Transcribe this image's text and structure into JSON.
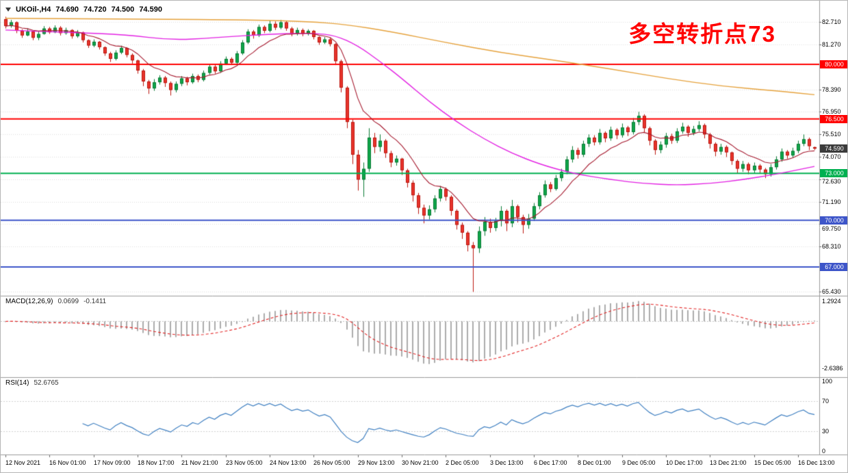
{
  "header": {
    "symbol_timeframe": "UKOil-,H4",
    "open": "74.690",
    "high": "74.720",
    "low": "74.500",
    "close": "74.590"
  },
  "annotation": {
    "text": "多空转折点73",
    "color": "#ff0000"
  },
  "price_axis": {
    "ticks": [
      "82.710",
      "81.270",
      "78.390",
      "76.950",
      "75.510",
      "74.070",
      "72.630",
      "71.190",
      "69.750",
      "68.310",
      "65.430"
    ],
    "current": {
      "label": "74.590",
      "value": 74.59,
      "bg": "#3b3b3b"
    }
  },
  "levels": [
    {
      "label": "80.000",
      "value": 80.0,
      "color": "#ff0000"
    },
    {
      "label": "76.500",
      "value": 76.5,
      "color": "#ff0000"
    },
    {
      "label": "73.000",
      "value": 73.0,
      "color": "#00b050"
    },
    {
      "label": "70.000",
      "value": 70.0,
      "color": "#3d55c9"
    },
    {
      "label": "67.000",
      "value": 67.0,
      "color": "#3d55c9"
    }
  ],
  "indicators": {
    "macd": {
      "label": "MACD(12,26,9)",
      "value_main": "0.0699",
      "value_signal": "-0.1411",
      "axis_max": "1.2924",
      "axis_min": "-2.6386",
      "fast": 12,
      "slow": 26,
      "signal": 9,
      "ylim": [
        -3.05,
        1.36
      ],
      "hist_color": "#ababab",
      "signal_color": "#e32222"
    },
    "rsi": {
      "label": "RSI(14)",
      "value": "52.6765",
      "period": 14,
      "ylim": [
        0,
        100
      ],
      "levels": [
        70,
        30
      ],
      "axis_ticks": [
        "100",
        "70",
        "30",
        "0"
      ],
      "color": "#3e7fc1"
    }
  },
  "chart_data": {
    "type": "candlestick",
    "symbol": "UKOil-",
    "timeframe": "H4",
    "title": "UKOil- H4 with MACD(12,26,9) and RSI(14)",
    "ylim": [
      65.2,
      83.95
    ],
    "ohlc_last": {
      "open": 74.69,
      "high": 74.72,
      "low": 74.5,
      "close": 74.59
    },
    "x_labels": [
      "12 Nov 2021",
      "16 Nov 01:00",
      "17 Nov 09:00",
      "18 Nov 17:00",
      "21 Nov 21:00",
      "23 Nov 05:00",
      "24 Nov 13:00",
      "26 Nov 05:00",
      "29 Nov 13:00",
      "30 Nov 21:00",
      "2 Dec 05:00",
      "3 Dec 13:00",
      "6 Dec 17:00",
      "8 Dec 01:00",
      "9 Dec 05:00",
      "10 Dec 17:00",
      "13 Dec 21:00",
      "15 Dec 05:00",
      "16 Dec 13:00"
    ],
    "style": {
      "up_fill": "#10a54a",
      "up_border": "#067a32",
      "down_fill": "#e8342c",
      "down_border": "#bb150e"
    },
    "ma_fast": {
      "type": "ema",
      "period": 10,
      "color": "#a6192e"
    },
    "ma_mid": {
      "name": "ma-mid",
      "color": "#e321e3",
      "points": [
        [
          0,
          82.2
        ],
        [
          12,
          82.05
        ],
        [
          22,
          81.9
        ],
        [
          30,
          81.55
        ],
        [
          38,
          81.7
        ],
        [
          48,
          81.95
        ],
        [
          56,
          82.0
        ],
        [
          60,
          81.85
        ],
        [
          64,
          81.2
        ],
        [
          68,
          80.2
        ],
        [
          72,
          79.1
        ],
        [
          77,
          77.6
        ],
        [
          82,
          76.3
        ],
        [
          87,
          75.2
        ],
        [
          92,
          74.3
        ],
        [
          97,
          73.6
        ],
        [
          103,
          73.0
        ],
        [
          110,
          72.6
        ],
        [
          116,
          72.35
        ],
        [
          122,
          72.25
        ],
        [
          128,
          72.35
        ],
        [
          134,
          72.6
        ],
        [
          140,
          72.95
        ],
        [
          147,
          73.45
        ]
      ]
    },
    "ma_slow": {
      "name": "ma-slow",
      "color": "#e6a23c",
      "points": [
        [
          0,
          82.95
        ],
        [
          25,
          82.9
        ],
        [
          45,
          82.85
        ],
        [
          55,
          82.75
        ],
        [
          62,
          82.55
        ],
        [
          70,
          82.1
        ],
        [
          80,
          81.4
        ],
        [
          90,
          80.75
        ],
        [
          100,
          80.25
        ],
        [
          110,
          79.7
        ],
        [
          120,
          79.1
        ],
        [
          130,
          78.6
        ],
        [
          140,
          78.3
        ],
        [
          147,
          78.05
        ]
      ]
    },
    "candles": [
      [
        82.9,
        83.05,
        82.3,
        82.45
      ],
      [
        82.45,
        82.85,
        82.35,
        82.7
      ],
      [
        82.7,
        82.75,
        82.0,
        82.15
      ],
      [
        82.15,
        82.25,
        81.7,
        81.85
      ],
      [
        81.85,
        82.3,
        81.8,
        82.1
      ],
      [
        82.1,
        82.15,
        81.55,
        81.7
      ],
      [
        81.7,
        82.1,
        81.55,
        81.95
      ],
      [
        81.95,
        82.45,
        81.9,
        82.3
      ],
      [
        82.3,
        82.4,
        81.95,
        82.05
      ],
      [
        82.05,
        82.5,
        82.0,
        82.35
      ],
      [
        82.35,
        82.45,
        81.85,
        82.0
      ],
      [
        82.0,
        82.35,
        81.9,
        82.2
      ],
      [
        82.2,
        82.25,
        81.65,
        81.8
      ],
      [
        81.8,
        82.2,
        81.7,
        82.05
      ],
      [
        82.05,
        82.1,
        81.4,
        81.55
      ],
      [
        81.55,
        81.6,
        81.05,
        81.2
      ],
      [
        81.2,
        81.6,
        81.1,
        81.45
      ],
      [
        81.45,
        81.5,
        80.95,
        81.1
      ],
      [
        81.1,
        81.15,
        80.55,
        80.7
      ],
      [
        80.7,
        80.8,
        80.15,
        80.35
      ],
      [
        80.35,
        80.9,
        80.25,
        80.75
      ],
      [
        80.75,
        81.2,
        80.65,
        81.05
      ],
      [
        81.05,
        81.1,
        80.45,
        80.6
      ],
      [
        80.6,
        80.7,
        80.05,
        80.25
      ],
      [
        80.25,
        80.3,
        79.4,
        79.6
      ],
      [
        79.6,
        79.7,
        78.6,
        78.9
      ],
      [
        78.9,
        79.0,
        78.1,
        78.45
      ],
      [
        78.45,
        79.05,
        78.3,
        78.85
      ],
      [
        78.85,
        79.3,
        78.7,
        79.15
      ],
      [
        79.15,
        79.25,
        78.55,
        78.8
      ],
      [
        78.8,
        78.9,
        78.0,
        78.35
      ],
      [
        78.35,
        78.9,
        78.2,
        78.75
      ],
      [
        78.75,
        79.25,
        78.6,
        79.1
      ],
      [
        79.1,
        79.2,
        78.65,
        78.85
      ],
      [
        78.85,
        79.4,
        78.75,
        79.25
      ],
      [
        79.25,
        79.35,
        78.85,
        79.0
      ],
      [
        79.0,
        79.6,
        78.9,
        79.45
      ],
      [
        79.45,
        80.0,
        79.35,
        79.85
      ],
      [
        79.85,
        79.95,
        79.4,
        79.55
      ],
      [
        79.55,
        80.2,
        79.45,
        80.05
      ],
      [
        80.05,
        80.5,
        79.95,
        80.35
      ],
      [
        80.35,
        80.45,
        79.95,
        80.1
      ],
      [
        80.1,
        80.85,
        80.0,
        80.7
      ],
      [
        80.7,
        81.55,
        80.6,
        81.4
      ],
      [
        81.4,
        82.25,
        81.3,
        82.1
      ],
      [
        82.1,
        82.2,
        81.65,
        81.85
      ],
      [
        81.85,
        82.55,
        81.75,
        82.4
      ],
      [
        82.4,
        82.5,
        82.0,
        82.15
      ],
      [
        82.15,
        82.8,
        82.05,
        82.6
      ],
      [
        82.6,
        82.75,
        82.2,
        82.35
      ],
      [
        82.35,
        82.85,
        82.25,
        82.7
      ],
      [
        82.7,
        82.8,
        82.15,
        82.3
      ],
      [
        82.3,
        82.4,
        81.8,
        81.95
      ],
      [
        81.95,
        82.35,
        81.85,
        82.2
      ],
      [
        82.2,
        82.3,
        81.8,
        81.95
      ],
      [
        81.95,
        82.25,
        81.85,
        82.15
      ],
      [
        82.15,
        82.2,
        81.6,
        81.75
      ],
      [
        81.75,
        81.8,
        81.25,
        81.4
      ],
      [
        81.4,
        81.75,
        81.3,
        81.6
      ],
      [
        81.6,
        81.7,
        81.15,
        81.3
      ],
      [
        81.3,
        81.35,
        79.95,
        80.2
      ],
      [
        80.2,
        80.3,
        78.2,
        78.5
      ],
      [
        78.5,
        78.6,
        75.9,
        76.3
      ],
      [
        76.3,
        76.45,
        73.6,
        74.2
      ],
      [
        74.2,
        74.5,
        71.9,
        72.6
      ],
      [
        72.6,
        73.7,
        71.5,
        73.3
      ],
      [
        73.3,
        75.9,
        73.1,
        75.3
      ],
      [
        75.3,
        75.6,
        74.3,
        74.7
      ],
      [
        74.7,
        75.5,
        74.4,
        75.1
      ],
      [
        75.1,
        75.2,
        74.0,
        74.3
      ],
      [
        74.3,
        74.45,
        73.4,
        73.7
      ],
      [
        73.7,
        74.15,
        73.5,
        73.95
      ],
      [
        73.95,
        74.0,
        72.9,
        73.2
      ],
      [
        73.2,
        73.3,
        72.1,
        72.4
      ],
      [
        72.4,
        72.55,
        71.2,
        71.6
      ],
      [
        71.6,
        71.75,
        70.4,
        70.8
      ],
      [
        70.8,
        71.0,
        69.8,
        70.3
      ],
      [
        70.3,
        70.95,
        70.05,
        70.7
      ],
      [
        70.7,
        71.6,
        70.5,
        71.4
      ],
      [
        71.4,
        72.2,
        71.2,
        72.0
      ],
      [
        72.0,
        72.1,
        71.25,
        71.5
      ],
      [
        71.5,
        71.6,
        70.3,
        70.6
      ],
      [
        70.6,
        70.7,
        69.4,
        69.7
      ],
      [
        69.7,
        69.85,
        68.8,
        69.2
      ],
      [
        69.2,
        69.3,
        68.0,
        68.4
      ],
      [
        68.4,
        68.6,
        65.4,
        68.2
      ],
      [
        68.2,
        69.6,
        67.9,
        69.3
      ],
      [
        69.3,
        70.2,
        69.0,
        69.9
      ],
      [
        69.9,
        70.1,
        69.2,
        69.5
      ],
      [
        69.5,
        70.15,
        69.3,
        69.95
      ],
      [
        69.95,
        70.9,
        69.6,
        70.6
      ],
      [
        70.6,
        70.7,
        69.3,
        69.8
      ],
      [
        69.8,
        71.3,
        69.55,
        70.9
      ],
      [
        70.9,
        71.0,
        69.85,
        70.2
      ],
      [
        70.2,
        70.35,
        69.15,
        69.7
      ],
      [
        69.7,
        70.4,
        69.45,
        70.1
      ],
      [
        70.1,
        71.1,
        69.95,
        70.9
      ],
      [
        70.9,
        71.8,
        70.7,
        71.6
      ],
      [
        71.6,
        72.55,
        71.45,
        72.3
      ],
      [
        72.3,
        72.45,
        71.8,
        72.0
      ],
      [
        72.0,
        72.9,
        71.9,
        72.7
      ],
      [
        72.7,
        73.3,
        72.5,
        73.1
      ],
      [
        73.1,
        74.1,
        72.95,
        73.9
      ],
      [
        73.9,
        74.75,
        73.7,
        74.5
      ],
      [
        74.5,
        74.65,
        73.95,
        74.2
      ],
      [
        74.2,
        75.1,
        74.05,
        74.9
      ],
      [
        74.9,
        75.5,
        74.7,
        75.3
      ],
      [
        75.3,
        75.45,
        74.8,
        75.0
      ],
      [
        75.0,
        75.85,
        74.85,
        75.6
      ],
      [
        75.6,
        75.7,
        75.0,
        75.25
      ],
      [
        75.25,
        76.0,
        75.1,
        75.8
      ],
      [
        75.8,
        75.9,
        75.2,
        75.45
      ],
      [
        75.45,
        76.2,
        75.3,
        75.95
      ],
      [
        75.95,
        76.05,
        75.4,
        75.65
      ],
      [
        75.65,
        76.55,
        75.5,
        76.3
      ],
      [
        76.3,
        76.95,
        76.1,
        76.7
      ],
      [
        76.7,
        76.8,
        75.6,
        75.9
      ],
      [
        75.9,
        76.0,
        74.8,
        75.1
      ],
      [
        75.1,
        75.2,
        74.2,
        74.5
      ],
      [
        74.5,
        75.05,
        74.3,
        74.85
      ],
      [
        74.85,
        75.6,
        74.65,
        75.4
      ],
      [
        75.4,
        75.55,
        74.9,
        75.1
      ],
      [
        75.1,
        75.9,
        74.95,
        75.7
      ],
      [
        75.7,
        76.25,
        75.55,
        76.0
      ],
      [
        76.0,
        76.1,
        75.35,
        75.6
      ],
      [
        75.6,
        76.05,
        75.45,
        75.85
      ],
      [
        75.85,
        76.35,
        75.7,
        76.1
      ],
      [
        76.1,
        76.2,
        75.25,
        75.5
      ],
      [
        75.5,
        75.6,
        74.6,
        74.9
      ],
      [
        74.9,
        75.0,
        74.1,
        74.4
      ],
      [
        74.4,
        74.9,
        74.2,
        74.7
      ],
      [
        74.7,
        74.8,
        74.05,
        74.35
      ],
      [
        74.35,
        74.4,
        73.55,
        73.8
      ],
      [
        73.8,
        73.9,
        73.0,
        73.3
      ],
      [
        73.3,
        73.8,
        73.1,
        73.6
      ],
      [
        73.6,
        73.7,
        72.95,
        73.2
      ],
      [
        73.2,
        73.7,
        73.0,
        73.5
      ],
      [
        73.5,
        73.6,
        73.0,
        73.25
      ],
      [
        73.25,
        73.35,
        72.7,
        72.95
      ],
      [
        72.95,
        73.6,
        72.8,
        73.4
      ],
      [
        73.4,
        74.1,
        73.25,
        73.9
      ],
      [
        73.9,
        74.6,
        73.75,
        74.4
      ],
      [
        74.4,
        74.5,
        73.95,
        74.15
      ],
      [
        74.15,
        74.65,
        74.0,
        74.45
      ],
      [
        74.45,
        75.1,
        74.3,
        74.9
      ],
      [
        74.9,
        75.5,
        74.75,
        75.2
      ],
      [
        75.2,
        75.3,
        74.5,
        74.75
      ],
      [
        74.69,
        74.72,
        74.5,
        74.59
      ]
    ]
  }
}
